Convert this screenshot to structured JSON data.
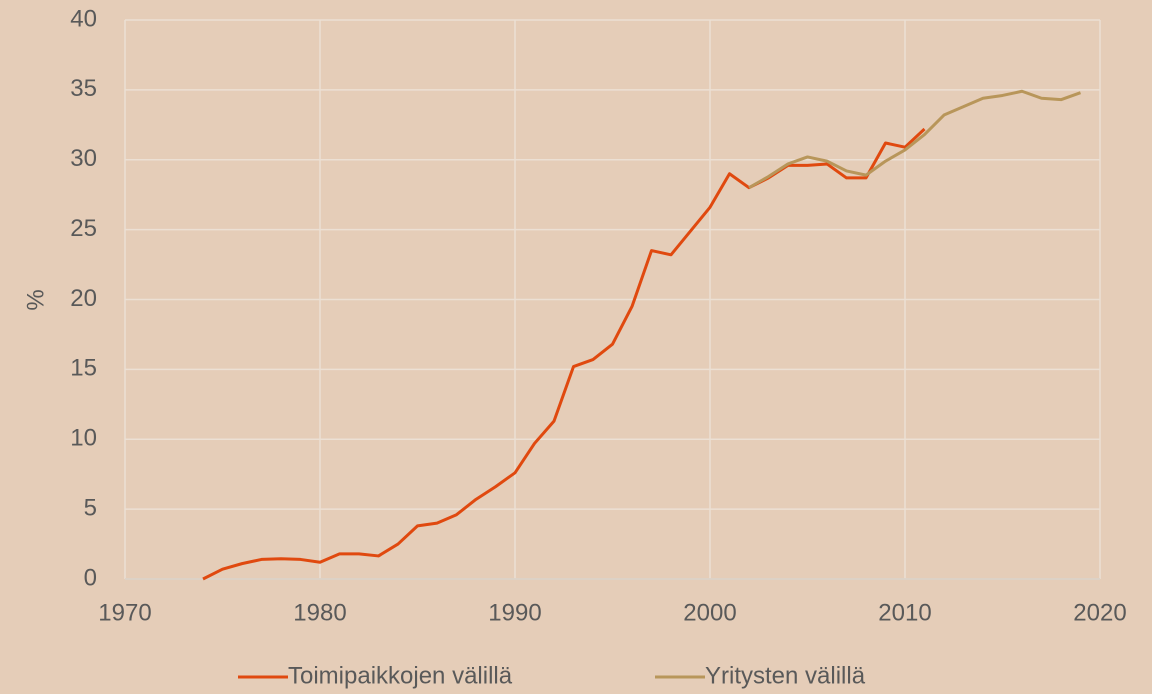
{
  "chart_data": {
    "type": "line",
    "y_label": "%",
    "x": [
      1974,
      1975,
      1976,
      1977,
      1978,
      1979,
      1980,
      1981,
      1982,
      1983,
      1984,
      1985,
      1986,
      1987,
      1988,
      1989,
      1990,
      1991,
      1992,
      1993,
      1994,
      1995,
      1996,
      1997,
      1998,
      1999,
      2000,
      2001,
      2002,
      2003,
      2004,
      2005,
      2006,
      2007,
      2008,
      2009,
      2010,
      2011,
      2012,
      2013,
      2014,
      2015,
      2016,
      2017,
      2018,
      2019
    ],
    "series": [
      {
        "name": "Toimipaikkojen välillä",
        "color": "#e0490f",
        "values": [
          0,
          0.7,
          1.1,
          1.4,
          1.45,
          1.4,
          1.2,
          1.8,
          1.8,
          1.65,
          2.5,
          3.8,
          4.0,
          4.6,
          5.7,
          6.6,
          7.6,
          9.7,
          11.3,
          15.2,
          15.7,
          16.8,
          19.5,
          23.5,
          23.2,
          24.9,
          26.6,
          29.0,
          28.0,
          28.7,
          29.6,
          29.6,
          29.7,
          28.7,
          28.7,
          31.2,
          30.9,
          32.2,
          null,
          null,
          null,
          null,
          null,
          null,
          null,
          null
        ]
      },
      {
        "name": "Yritysten välillä",
        "color": "#b8965a",
        "values": [
          null,
          null,
          null,
          null,
          null,
          null,
          null,
          null,
          null,
          null,
          null,
          null,
          null,
          null,
          null,
          null,
          null,
          null,
          null,
          null,
          null,
          null,
          null,
          null,
          null,
          null,
          null,
          null,
          28.0,
          28.8,
          29.7,
          30.2,
          29.9,
          29.2,
          28.9,
          29.9,
          30.7,
          31.8,
          33.2,
          33.8,
          34.4,
          34.6,
          34.9,
          34.4,
          34.3,
          34.8
        ]
      }
    ],
    "xlim": [
      1970,
      2020
    ],
    "xticks": [
      1970,
      1980,
      1990,
      2000,
      2010,
      2020
    ],
    "ylim": [
      0,
      40
    ],
    "yticks": [
      0,
      5,
      10,
      15,
      20,
      25,
      30,
      35,
      40
    ],
    "grid": true,
    "legend": "bottom"
  }
}
